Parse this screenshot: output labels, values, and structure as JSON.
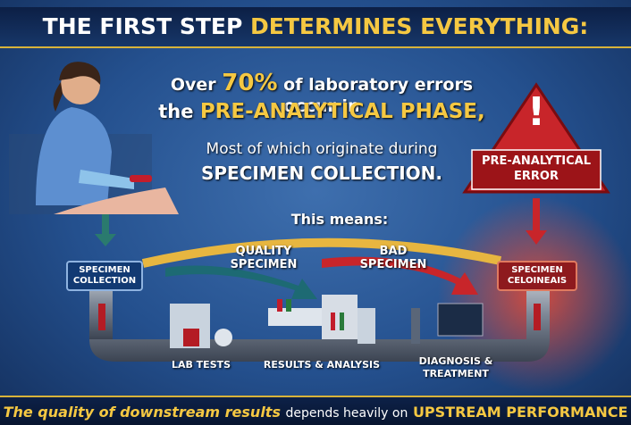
{
  "header": {
    "title_white": "THE FIRST STEP",
    "title_yellow": "DETERMINES EVERYTHING:"
  },
  "headline": {
    "line1": [
      "Over",
      "70%",
      "of laboratory errors occur in"
    ],
    "line2": [
      "the",
      "PRE-ANALYTICAL PHASE,"
    ],
    "line3": "Most of which originate during",
    "line4": "SPECIMEN COLLECTION."
  },
  "warning": {
    "icon": "!",
    "label": "PRE-ANALYTICAL ERROR"
  },
  "subheading": "This means:",
  "flow": {
    "quality": "QUALITY SPECIMEN",
    "bad": "BAD SPECIMEN",
    "left_box": "SPECIMEN COLLECTION",
    "right_box": "SPECIMEN CELOINEAIS",
    "stages": [
      "LAB TESTS",
      "RESULTS & ANALYSIS",
      "DIAGNOSIS & TREATMENT"
    ]
  },
  "footer": {
    "part1": "The quality of downstream results",
    "part2": "depends heavily on",
    "part3": "UPSTREAM PERFORMANCE"
  }
}
